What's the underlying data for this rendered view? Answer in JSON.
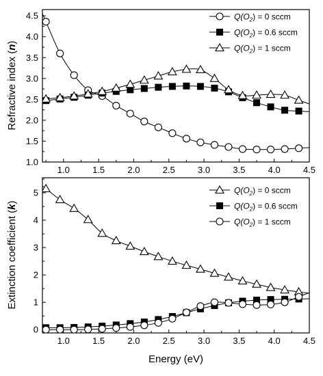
{
  "chart_data": [
    {
      "type": "line",
      "ylabel": "Refractive index (n)",
      "ylabel_plain": "Refractive index (",
      "ylabel_symbol": "n",
      "ylabel_close": ")",
      "xlim": [
        0.7,
        4.5
      ],
      "ylim": [
        1.0,
        4.65
      ],
      "xticks": [
        "1.0",
        "1.5",
        "2.0",
        "2.5",
        "3.0",
        "3.5",
        "4.0",
        "4.5"
      ],
      "yticks": [
        "1.0",
        "1.5",
        "2.0",
        "2.5",
        "3.0",
        "3.5",
        "4.0",
        "4.5"
      ],
      "legend_position": "top-right",
      "series": [
        {
          "name": "Q(O2) = 0 sccm",
          "marker": "open-circle",
          "x": [
            0.75,
            0.95,
            1.15,
            1.35,
            1.55,
            1.75,
            1.95,
            2.15,
            2.35,
            2.55,
            2.75,
            2.95,
            3.15,
            3.35,
            3.55,
            3.75,
            3.95,
            4.15,
            4.35
          ],
          "y": [
            4.36,
            3.6,
            3.08,
            2.72,
            2.58,
            2.35,
            2.16,
            1.97,
            1.83,
            1.69,
            1.56,
            1.47,
            1.41,
            1.36,
            1.31,
            1.3,
            1.3,
            1.31,
            1.33
          ]
        },
        {
          "name": "Q(O2) = 0.6 sccm",
          "marker": "filled-square",
          "x": [
            0.75,
            0.95,
            1.15,
            1.35,
            1.55,
            1.75,
            1.95,
            2.15,
            2.35,
            2.55,
            2.75,
            2.95,
            3.15,
            3.35,
            3.55,
            3.75,
            3.95,
            4.15,
            4.35
          ],
          "y": [
            2.47,
            2.51,
            2.55,
            2.6,
            2.65,
            2.69,
            2.73,
            2.76,
            2.79,
            2.81,
            2.82,
            2.81,
            2.77,
            2.68,
            2.54,
            2.42,
            2.32,
            2.24,
            2.22
          ]
        },
        {
          "name": "Q(O2) = 1 sccm",
          "marker": "open-triangle",
          "x": [
            0.75,
            0.95,
            1.15,
            1.35,
            1.55,
            1.75,
            1.95,
            2.15,
            2.35,
            2.55,
            2.75,
            2.95,
            3.15,
            3.35,
            3.55,
            3.75,
            3.95,
            4.15,
            4.35
          ],
          "y": [
            2.51,
            2.54,
            2.58,
            2.63,
            2.69,
            2.77,
            2.86,
            2.96,
            3.06,
            3.16,
            3.22,
            3.21,
            3.0,
            2.73,
            2.59,
            2.6,
            2.62,
            2.6,
            2.48
          ]
        }
      ]
    },
    {
      "type": "line",
      "xlabel": "Energy (eV)",
      "ylabel": "Extinction coefficient (k)",
      "ylabel_plain": "Extinction coefficient (",
      "ylabel_symbol": "k",
      "ylabel_close": ")",
      "xlim": [
        0.7,
        4.5
      ],
      "ylim": [
        -0.12,
        5.55
      ],
      "xticks": [
        "1.0",
        "1.5",
        "2.0",
        "2.5",
        "3.0",
        "3.5",
        "4.0",
        "4.5"
      ],
      "yticks": [
        "0",
        "1",
        "2",
        "3",
        "4",
        "5"
      ],
      "legend_position": "top-right",
      "series": [
        {
          "name": "Q(O2) = 0 sccm",
          "marker": "open-triangle",
          "x": [
            0.75,
            0.95,
            1.15,
            1.35,
            1.55,
            1.75,
            1.95,
            2.15,
            2.35,
            2.55,
            2.75,
            2.95,
            3.15,
            3.35,
            3.55,
            3.75,
            3.95,
            4.15,
            4.35
          ],
          "y": [
            5.15,
            4.75,
            4.43,
            4.02,
            3.52,
            3.25,
            3.05,
            2.85,
            2.67,
            2.5,
            2.35,
            2.21,
            2.06,
            1.92,
            1.78,
            1.66,
            1.54,
            1.45,
            1.38
          ]
        },
        {
          "name": "Q(O2) = 0.6 sccm",
          "marker": "filled-square",
          "x": [
            0.75,
            0.95,
            1.15,
            1.35,
            1.55,
            1.75,
            1.95,
            2.15,
            2.35,
            2.55,
            2.75,
            2.95,
            3.15,
            3.35,
            3.55,
            3.75,
            3.95,
            4.15,
            4.35
          ],
          "y": [
            0.07,
            0.07,
            0.08,
            0.1,
            0.13,
            0.17,
            0.22,
            0.28,
            0.37,
            0.48,
            0.62,
            0.76,
            0.88,
            0.98,
            1.04,
            1.08,
            1.1,
            1.11,
            1.12
          ]
        },
        {
          "name": "Q(O2) = 1 sccm",
          "marker": "open-circle",
          "x": [
            0.75,
            0.95,
            1.15,
            1.35,
            1.55,
            1.75,
            1.95,
            2.15,
            2.35,
            2.55,
            2.75,
            2.95,
            3.15,
            3.35,
            3.55,
            3.75,
            3.95,
            4.15,
            4.35
          ],
          "y": [
            0.0,
            0.0,
            0.0,
            0.01,
            0.03,
            0.06,
            0.1,
            0.16,
            0.25,
            0.4,
            0.63,
            0.86,
            1.0,
            0.98,
            0.93,
            0.9,
            0.92,
            1.0,
            1.2
          ]
        }
      ]
    }
  ],
  "legend_text": {
    "prefix": "Q(O",
    "subscript": "2",
    "suffix_0": ")  = 0 sccm",
    "suffix_06": ")  = 0.6 sccm",
    "suffix_1": ")  = 1 sccm"
  }
}
